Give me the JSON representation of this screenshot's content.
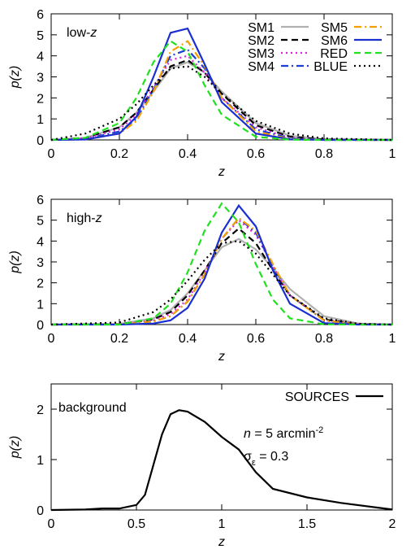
{
  "chart_data": [
    {
      "type": "line",
      "annotations": [
        [
          "low-",
          "z"
        ]
      ],
      "x_label": "z",
      "y_label": "p(z)",
      "xlim": [
        0,
        1
      ],
      "ylim": [
        0,
        6
      ],
      "xticks": [
        0,
        0.2,
        0.4,
        0.6,
        0.8,
        1
      ],
      "yticks": [
        0,
        1,
        2,
        3,
        4,
        5,
        6
      ],
      "x": [
        0,
        0.1,
        0.2,
        0.25,
        0.3,
        0.35,
        0.4,
        0.45,
        0.5,
        0.6,
        0.7,
        0.8,
        1
      ],
      "series": [
        {
          "name": "SM1",
          "color": "#b0b0b0",
          "dash": "solid",
          "values": [
            0,
            0.1,
            0.6,
            1.3,
            2.3,
            3.4,
            3.7,
            3.2,
            2.3,
            0.8,
            0.2,
            0.03,
            0
          ]
        },
        {
          "name": "SM2",
          "color": "#000000",
          "dash": "dashed",
          "values": [
            0,
            0.1,
            0.6,
            1.3,
            2.4,
            3.5,
            3.8,
            3.2,
            2.2,
            0.7,
            0.15,
            0.02,
            0
          ]
        },
        {
          "name": "SM3",
          "color": "#e020e0",
          "dash": "dotted",
          "values": [
            0,
            0.08,
            0.5,
            1.2,
            2.5,
            3.8,
            4.0,
            3.2,
            2.0,
            0.6,
            0.1,
            0.01,
            0
          ]
        },
        {
          "name": "SM4",
          "color": "#1a3fd6",
          "dash": "dashdot",
          "values": [
            0,
            0.05,
            0.4,
            1.0,
            2.4,
            4.0,
            4.3,
            3.4,
            2.0,
            0.5,
            0.08,
            0,
            0
          ]
        },
        {
          "name": "SM5",
          "color": "#f5a000",
          "dash": "dashdot",
          "values": [
            0,
            0.03,
            0.3,
            0.9,
            2.3,
            4.2,
            4.7,
            3.5,
            2.0,
            0.4,
            0.05,
            0,
            0
          ]
        },
        {
          "name": "SM6",
          "color": "#1a2fd0",
          "dash": "solid",
          "values": [
            0,
            0.02,
            0.3,
            1.1,
            3.0,
            5.1,
            5.3,
            3.6,
            1.8,
            0.3,
            0.03,
            0,
            0
          ]
        },
        {
          "name": "RED",
          "color": "#20e020",
          "dash": "dashed",
          "values": [
            0,
            0.1,
            0.8,
            2.0,
            3.7,
            4.7,
            4.2,
            2.6,
            1.2,
            0.15,
            0.01,
            0,
            0
          ]
        },
        {
          "name": "BLUE",
          "color": "#000000",
          "dash": "dotted",
          "values": [
            0,
            0.3,
            1.0,
            1.7,
            2.6,
            3.4,
            3.5,
            3.0,
            2.2,
            0.9,
            0.3,
            0.07,
            0
          ]
        }
      ]
    },
    {
      "type": "line",
      "annotations": [
        [
          "high-",
          "z"
        ]
      ],
      "x_label": "z",
      "y_label": "p(z)",
      "xlim": [
        0,
        1
      ],
      "ylim": [
        0,
        6
      ],
      "xticks": [
        0,
        0.2,
        0.4,
        0.6,
        0.8,
        1
      ],
      "yticks": [
        0,
        1,
        2,
        3,
        4,
        5,
        6
      ],
      "x": [
        0,
        0.2,
        0.3,
        0.35,
        0.4,
        0.45,
        0.5,
        0.55,
        0.6,
        0.65,
        0.7,
        0.8,
        0.9,
        1
      ],
      "series": [
        {
          "color": "#b0b0b0",
          "dash": "solid",
          "values": [
            0,
            0.03,
            0.3,
            0.7,
            1.5,
            2.6,
            3.7,
            4.1,
            3.6,
            2.7,
            1.7,
            0.4,
            0.05,
            0
          ]
        },
        {
          "color": "#000000",
          "dash": "dashed",
          "values": [
            0,
            0.02,
            0.25,
            0.6,
            1.4,
            2.6,
            3.9,
            4.6,
            3.9,
            2.6,
            1.4,
            0.25,
            0.02,
            0
          ]
        },
        {
          "color": "#e020e0",
          "dash": "dotted",
          "values": [
            0,
            0.01,
            0.2,
            0.5,
            1.2,
            2.5,
            4.1,
            5.0,
            4.3,
            2.8,
            1.4,
            0.2,
            0.01,
            0
          ]
        },
        {
          "color": "#1a3fd6",
          "dash": "dashdot",
          "values": [
            0,
            0.01,
            0.15,
            0.4,
            1.1,
            2.4,
            4.1,
            5.1,
            4.4,
            2.8,
            1.4,
            0.2,
            0.01,
            0
          ]
        },
        {
          "color": "#f5a000",
          "dash": "dashdot",
          "values": [
            0,
            0.01,
            0.15,
            0.4,
            1.1,
            2.4,
            4.1,
            5.1,
            4.5,
            2.9,
            1.4,
            0.2,
            0.01,
            0
          ]
        },
        {
          "color": "#1a2fd0",
          "dash": "solid",
          "values": [
            0,
            0,
            0.05,
            0.2,
            0.8,
            2.2,
            4.4,
            5.7,
            4.7,
            2.6,
            1.0,
            0.07,
            0,
            0
          ]
        },
        {
          "color": "#20e020",
          "dash": "dashed",
          "values": [
            0,
            0,
            0.3,
            1.0,
            2.5,
            4.5,
            5.8,
            4.9,
            2.9,
            1.2,
            0.3,
            0.01,
            0,
            0
          ]
        },
        {
          "color": "#000000",
          "dash": "dotted",
          "values": [
            0,
            0.1,
            0.6,
            1.2,
            2.1,
            3.1,
            3.9,
            4.0,
            3.4,
            2.4,
            1.4,
            0.3,
            0.04,
            0
          ]
        }
      ]
    },
    {
      "type": "line",
      "annotations": [
        [
          "background"
        ],
        [
          "n",
          " = 5 arcmin",
          "-2"
        ],
        [
          "σ",
          "ε",
          " = 0.3"
        ]
      ],
      "x_label": "z",
      "y_label": "p(z)",
      "xlim": [
        0,
        2
      ],
      "ylim": [
        0,
        2.5
      ],
      "xticks": [
        0,
        0.5,
        1,
        1.5,
        2
      ],
      "yticks": [
        0,
        1,
        2
      ],
      "x": [
        0,
        0.2,
        0.3,
        0.4,
        0.5,
        0.55,
        0.6,
        0.65,
        0.7,
        0.75,
        0.8,
        0.9,
        1,
        1.1,
        1.2,
        1.3,
        1.5,
        1.7,
        2
      ],
      "series": [
        {
          "name": "SOURCES",
          "color": "#000000",
          "dash": "solid",
          "values": [
            0,
            0.01,
            0.03,
            0.03,
            0.1,
            0.3,
            0.9,
            1.5,
            1.9,
            1.98,
            1.95,
            1.75,
            1.45,
            1.2,
            0.75,
            0.42,
            0.25,
            0.14,
            0.01
          ]
        }
      ]
    }
  ]
}
